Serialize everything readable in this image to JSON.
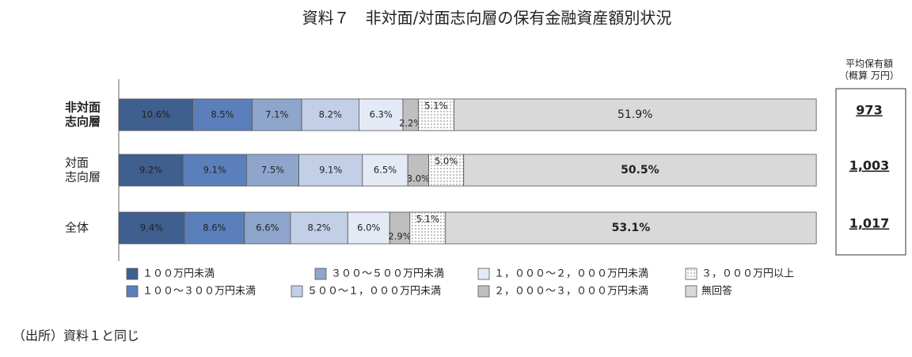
{
  "chart_data": {
    "type": "stacked-bar-horizontal",
    "title": "資料７　非対面/対面志向層の保有金融資産額別状況",
    "categories": [
      [
        "非対面",
        "志向層"
      ],
      [
        "対面",
        "志向層"
      ],
      [
        "全体"
      ]
    ],
    "xlim": [
      0,
      100
    ],
    "series": [
      {
        "name": "１００万円未満",
        "color": "#3f5f8f",
        "values": [
          10.6,
          9.2,
          9.4
        ],
        "value_labels": [
          "10.6%",
          "9.2%",
          "9.4%"
        ]
      },
      {
        "name": "１００～３００万円未満",
        "color": "#5b7fba",
        "values": [
          8.5,
          9.1,
          8.6
        ],
        "value_labels": [
          "8.5%",
          "9.1%",
          "8.6%"
        ]
      },
      {
        "name": "３００～５００万円未満",
        "color": "#8ea5cc",
        "values": [
          7.1,
          7.5,
          6.6
        ],
        "value_labels": [
          "7.1%",
          "7.5%",
          "6.6%"
        ]
      },
      {
        "name": "５００～１，０００万円未満",
        "color": "#c2cfe7",
        "values": [
          8.2,
          9.1,
          8.2
        ],
        "value_labels": [
          "8.2%",
          "9.1%",
          "8.2%"
        ]
      },
      {
        "name": "１，０００～２，０００万円未満",
        "color": "#e4eaf5",
        "values": [
          6.3,
          6.5,
          6.0
        ],
        "value_labels": [
          "6.3%",
          "6.5%",
          "6.0%"
        ]
      },
      {
        "name": "２，０００～３，０００万円未満",
        "color": "#bfbfbf",
        "values": [
          2.2,
          3.0,
          2.9
        ],
        "value_labels": [
          "2.2%",
          "3.0%",
          "2.9%"
        ]
      },
      {
        "name": "３，０００万円以上",
        "color": "dotted",
        "values": [
          5.1,
          5.0,
          5.1
        ],
        "value_labels": [
          "5.1%",
          "5.0%",
          "5.1%"
        ]
      },
      {
        "name": "無回答",
        "color": "#d9d9d9",
        "values": [
          51.9,
          50.5,
          53.1
        ],
        "value_labels": [
          "51.9%",
          "50.5%",
          "53.1%"
        ]
      }
    ],
    "average_holdings": {
      "title": [
        "平均保有額",
        "（概算 万円）"
      ],
      "values": [
        973,
        1003,
        1017
      ],
      "value_labels": [
        "973",
        "1,003",
        "1,017"
      ]
    },
    "source": "（出所）資料１と同じ"
  }
}
